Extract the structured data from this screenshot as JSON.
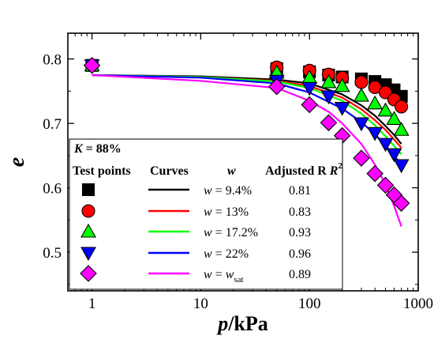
{
  "chart_data": {
    "type": "scatter",
    "xscale": "log",
    "xlim": [
      0.6,
      1000
    ],
    "ylim": [
      0.44,
      0.84
    ],
    "xlabel_italic": "p",
    "xlabel_rest": "/kPa",
    "ylabel": "e",
    "x_ticks": [
      1,
      10,
      100,
      1000
    ],
    "x_tick_labels": [
      "1",
      "10",
      "100",
      "1000"
    ],
    "y_ticks": [
      0.5,
      0.6,
      0.7,
      0.8
    ],
    "y_tick_labels": [
      "0.5",
      "0.6",
      "0.7",
      "0.8"
    ],
    "grid": false,
    "legend": {
      "placement": "bottom-left",
      "title_k": "K",
      "title_val": " = 88%",
      "col_test_points": "Test points",
      "col_curves": "Curves",
      "col_w": "w",
      "col_r2": "Adjusted R",
      "col_r2_sup": "2",
      "rows": [
        {
          "w_label_var": "w",
          "w_label_rest": " = 9.4%",
          "r2": "0.81",
          "w_label_sub": ""
        },
        {
          "w_label_var": "w",
          "w_label_rest": " = 13%",
          "r2": "0.83",
          "w_label_sub": ""
        },
        {
          "w_label_var": "w",
          "w_label_rest": " = 17.2%",
          "r2": "0.93",
          "w_label_sub": ""
        },
        {
          "w_label_var": "w",
          "w_label_rest": " = 22%",
          "r2": "0.96",
          "w_label_sub": ""
        },
        {
          "w_label_var": "w",
          "w_label_rest": " = w",
          "r2": "0.89",
          "w_label_sub": "sat"
        }
      ]
    },
    "series": [
      {
        "marker": "square",
        "fill": "#000000",
        "curve_color": "#000000",
        "x": [
          1,
          50,
          100,
          150,
          200,
          300,
          400,
          500,
          600,
          700
        ],
        "y": [
          0.79,
          0.785,
          0.78,
          0.775,
          0.772,
          0.769,
          0.765,
          0.76,
          0.752,
          0.742
        ],
        "fit_x": [
          1,
          10,
          50,
          100,
          200,
          300,
          400,
          500,
          600,
          700
        ],
        "fit_y": [
          0.775,
          0.773,
          0.768,
          0.762,
          0.745,
          0.728,
          0.712,
          0.696,
          0.682,
          0.668
        ]
      },
      {
        "marker": "circle",
        "fill": "#ff0000",
        "curve_color": "#ff0000",
        "x": [
          1,
          50,
          100,
          150,
          200,
          300,
          400,
          500,
          600,
          700
        ],
        "y": [
          0.79,
          0.787,
          0.782,
          0.776,
          0.771,
          0.764,
          0.756,
          0.748,
          0.737,
          0.726
        ],
        "fit_x": [
          1,
          10,
          50,
          100,
          200,
          300,
          400,
          500,
          600,
          700
        ],
        "fit_y": [
          0.775,
          0.772,
          0.766,
          0.758,
          0.74,
          0.722,
          0.705,
          0.69,
          0.675,
          0.662
        ]
      },
      {
        "marker": "triangle-up",
        "fill": "#00ff00",
        "curve_color": "#00ff00",
        "x": [
          1,
          50,
          100,
          150,
          200,
          300,
          400,
          500,
          600,
          700
        ],
        "y": [
          0.79,
          0.779,
          0.771,
          0.764,
          0.758,
          0.743,
          0.731,
          0.72,
          0.707,
          0.69
        ],
        "fit_x": [
          1,
          10,
          50,
          100,
          200,
          300,
          400,
          500,
          600,
          700
        ],
        "fit_y": [
          0.775,
          0.772,
          0.765,
          0.755,
          0.735,
          0.715,
          0.697,
          0.68,
          0.665,
          0.652
        ]
      },
      {
        "marker": "triangle-down",
        "fill": "#0000ff",
        "curve_color": "#0000ff",
        "x": [
          1,
          50,
          100,
          150,
          200,
          300,
          400,
          500,
          600,
          700
        ],
        "y": [
          0.79,
          0.766,
          0.755,
          0.742,
          0.724,
          0.7,
          0.685,
          0.668,
          0.652,
          0.635
        ],
        "fit_x": [
          1,
          10,
          50,
          100,
          200,
          300,
          400,
          500,
          600,
          700
        ],
        "fit_y": [
          0.775,
          0.771,
          0.762,
          0.748,
          0.723,
          0.702,
          0.683,
          0.666,
          0.65,
          0.636
        ]
      },
      {
        "marker": "diamond",
        "fill": "#ff00ff",
        "curve_color": "#ff00ff",
        "x": [
          1,
          50,
          100,
          150,
          200,
          300,
          400,
          500,
          600,
          700
        ],
        "y": [
          0.79,
          0.757,
          0.729,
          0.701,
          0.681,
          0.646,
          0.622,
          0.604,
          0.589,
          0.576
        ],
        "fit_x": [
          1,
          10,
          50,
          100,
          150,
          200,
          300,
          400,
          500,
          600,
          700
        ],
        "fit_y": [
          0.775,
          0.766,
          0.755,
          0.735,
          0.718,
          0.7,
          0.668,
          0.636,
          0.605,
          0.572,
          0.54
        ]
      }
    ]
  }
}
